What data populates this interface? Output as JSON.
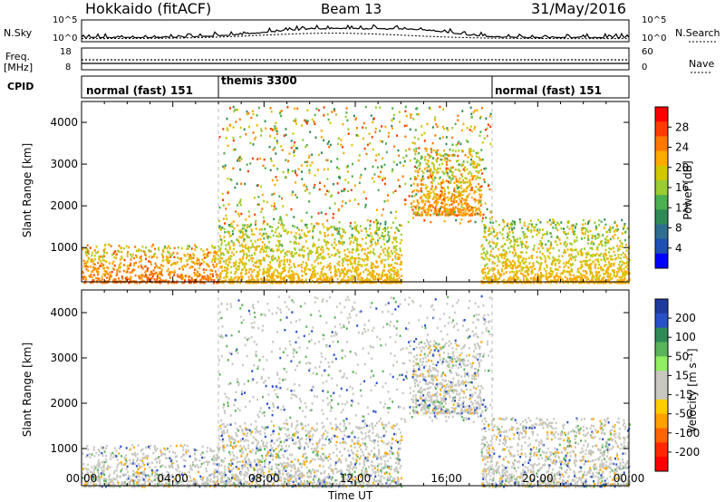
{
  "header": {
    "station": "Hokkaido (fitACF)",
    "beam": "Beam 13",
    "date": "31/May/2016"
  },
  "side_labels": {
    "nsky": "N.Sky",
    "freq": "Freq.",
    "freq_unit": "[MHz]",
    "cpid": "CPID",
    "nsearch": "N.Search",
    "nave": "Nave"
  },
  "nsky_axis": {
    "top": "10^5",
    "bottom": "10^0"
  },
  "nsearch_axis": {
    "top": "10^5",
    "bottom": "10^0"
  },
  "freq_axis": {
    "top": "18",
    "bottom": "8"
  },
  "nave_axis": {
    "top": "60",
    "bottom": "0"
  },
  "cpid_segments": [
    {
      "label": "normal (fast) 151",
      "start_h": 0,
      "end_h": 6
    },
    {
      "label": "themis 3300",
      "start_h": 6,
      "end_h": 18
    },
    {
      "label": "normal (fast) 151",
      "start_h": 18,
      "end_h": 24
    }
  ],
  "colorbars": {
    "power": {
      "title": "Power [dB]",
      "ticks": [
        "28",
        "24",
        "20",
        "16",
        "12",
        "8",
        "4"
      ],
      "colors": [
        "#ff0000",
        "#ff3c00",
        "#ff7800",
        "#ffaa00",
        "#d2c800",
        "#9acd32",
        "#4caf50",
        "#2e8b57",
        "#2e6e8e",
        "#1e50b4",
        "#0000ff"
      ]
    },
    "velocity": {
      "title": "Velocity [m s⁻¹]",
      "ticks": [
        "200",
        "100",
        "50",
        "15",
        "-15",
        "-50",
        "-100",
        "-200"
      ],
      "colors": [
        "#1e3ca0",
        "#2850c8",
        "#2e8b57",
        "#5ab45a",
        "#90ee60",
        "#c8c8c0",
        "#c8c8c0",
        "#ffcc00",
        "#ffa000",
        "#ff6400",
        "#ff2800",
        "#ff0000"
      ]
    }
  },
  "chart_data": {
    "type": "heatmap",
    "xlabel": "Time UT",
    "ylabel": "Slant Range [km]",
    "xlim": [
      0,
      24
    ],
    "ylim": [
      180,
      4500
    ],
    "x_ticks": [
      "00:00",
      "04:00",
      "08:00",
      "12:00",
      "16:00",
      "20:00",
      "00:00"
    ],
    "y_ticks": [
      1000,
      2000,
      3000,
      4000
    ],
    "panels": [
      "Power [dB]",
      "Velocity [m s⁻¹]"
    ],
    "scatter_regions": [
      {
        "t0": 0,
        "t1": 6,
        "r0": 180,
        "r1": 1100,
        "power": 26
      },
      {
        "t0": 6,
        "t1": 14,
        "r0": 180,
        "r1": 1600,
        "power": 22
      },
      {
        "t0": 14.5,
        "t1": 17.5,
        "r0": 1800,
        "r1": 3400,
        "power": 24
      },
      {
        "t0": 17.5,
        "t1": 24,
        "r0": 180,
        "r1": 1700,
        "power": 22
      }
    ]
  }
}
